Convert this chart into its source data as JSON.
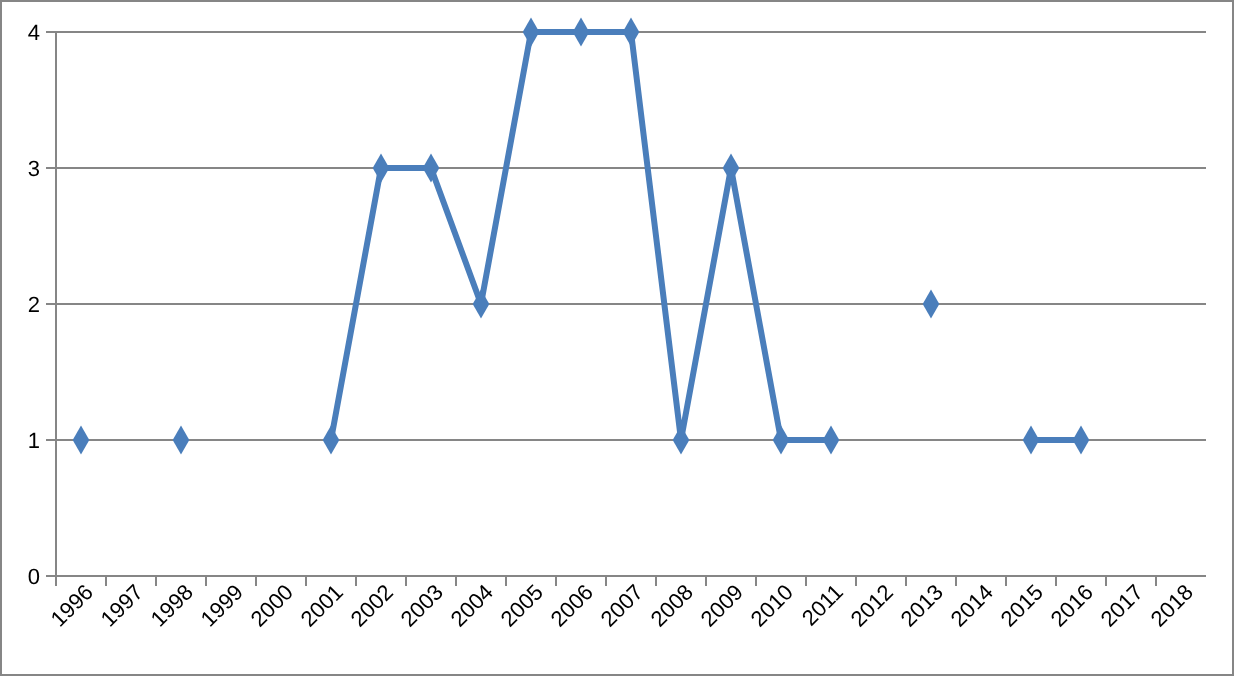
{
  "chart_data": {
    "type": "line",
    "categories": [
      "1996",
      "1997",
      "1998",
      "1999",
      "2000",
      "2001",
      "2002",
      "2003",
      "2004",
      "2005",
      "2006",
      "2007",
      "2008",
      "2009",
      "2010",
      "2011",
      "2012",
      "2013",
      "2014",
      "2015",
      "2016",
      "2017",
      "2018"
    ],
    "series": [
      {
        "color": "#4a7ebb",
        "values": [
          1,
          null,
          1,
          null,
          null,
          1,
          3,
          3,
          2,
          4,
          4,
          4,
          1,
          3,
          1,
          1,
          null,
          2,
          null,
          1,
          1,
          null,
          null
        ]
      }
    ],
    "ylim": [
      0,
      4
    ],
    "yticks": [
      0,
      1,
      2,
      3,
      4
    ],
    "grid": "y",
    "marker": "diamond",
    "line_style": "solid"
  }
}
